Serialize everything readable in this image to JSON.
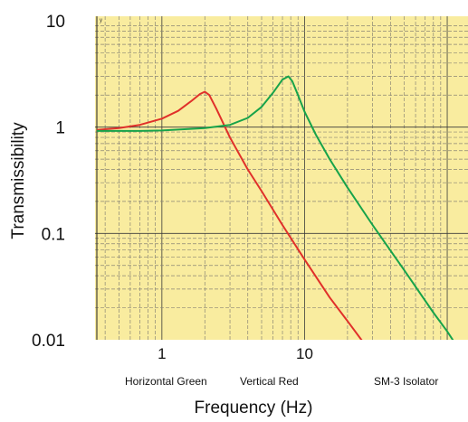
{
  "chart_data": {
    "type": "line",
    "title": "",
    "xlabel": "Frequency (Hz)",
    "ylabel": "Transmissibility",
    "x_scale": "log",
    "y_scale": "log",
    "xlim": [
      0.35,
      130
    ],
    "ylim": [
      0.01,
      10
    ],
    "grid": true,
    "x_ticks": [
      {
        "value": 1,
        "label": "1"
      },
      {
        "value": 10,
        "label": "10"
      }
    ],
    "y_ticks": [
      {
        "value": 10,
        "label": "10"
      },
      {
        "value": 1,
        "label": "1"
      },
      {
        "value": 0.1,
        "label": "0.1"
      },
      {
        "value": 0.01,
        "label": "0.01"
      }
    ],
    "corner_mark": "y",
    "notes": [
      "Horizontal Green",
      "Vertical  Red",
      "SM-3 Isolator"
    ],
    "colors": {
      "plot_background": "#f9ec9f",
      "red": "#e0302a",
      "green": "#17a34a"
    },
    "series": [
      {
        "color": "#e0302a",
        "x": [
          0.35,
          0.5,
          0.7,
          1.0,
          1.3,
          1.6,
          1.85,
          2.0,
          2.15,
          2.4,
          3.0,
          4.0,
          5.0,
          7.0,
          10.0,
          15.0,
          20.0,
          25.0,
          30.0
        ],
        "y": [
          0.94,
          0.98,
          1.05,
          1.2,
          1.42,
          1.75,
          2.05,
          2.15,
          2.0,
          1.5,
          0.8,
          0.4,
          0.25,
          0.12,
          0.057,
          0.025,
          0.015,
          0.01,
          0.0075
        ]
      },
      {
        "color": "#17a34a",
        "x": [
          0.35,
          0.7,
          1.0,
          2.0,
          3.0,
          4.0,
          5.0,
          6.0,
          7.0,
          7.7,
          8.2,
          9.0,
          10.0,
          12.0,
          15.0,
          20.0,
          30.0,
          50.0,
          80.0,
          100.0,
          130.0
        ],
        "y": [
          0.92,
          0.92,
          0.93,
          0.98,
          1.05,
          1.22,
          1.55,
          2.1,
          2.8,
          3.0,
          2.7,
          2.0,
          1.4,
          0.85,
          0.5,
          0.27,
          0.12,
          0.045,
          0.018,
          0.012,
          0.007
        ]
      }
    ]
  }
}
